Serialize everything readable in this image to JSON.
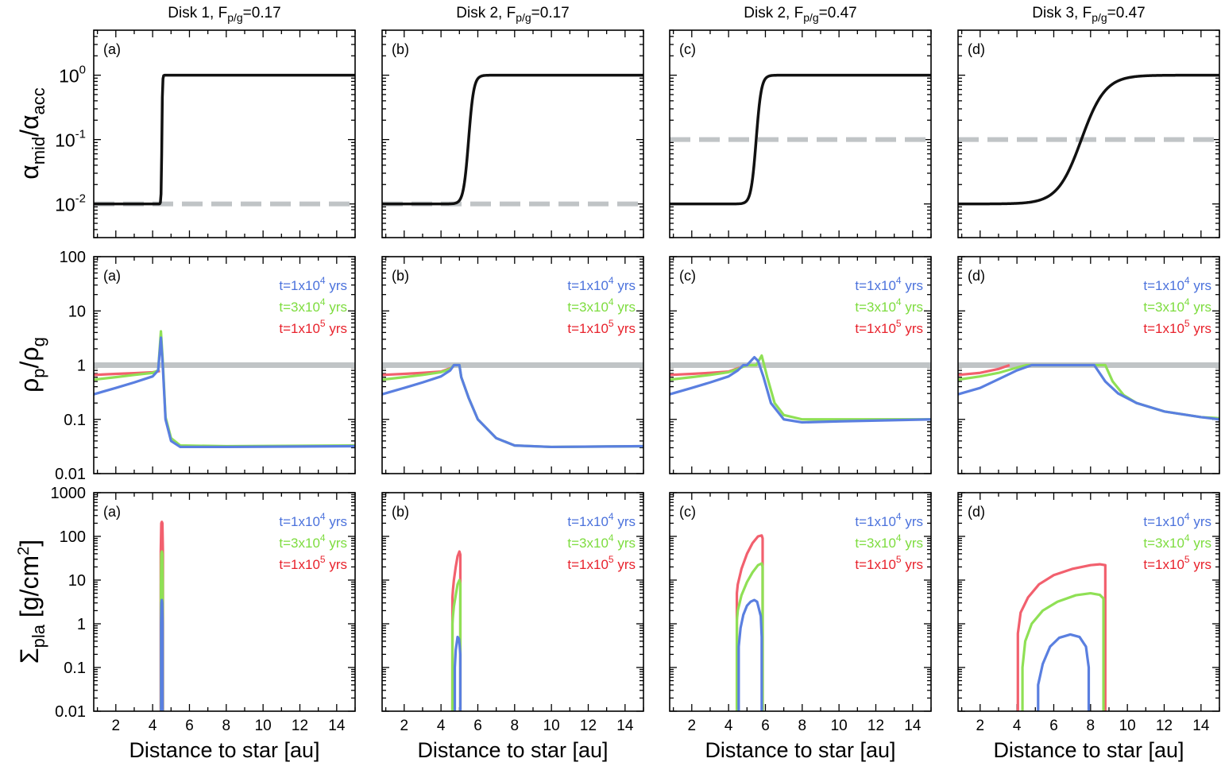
{
  "columns": [
    {
      "title": "Disk 1, F",
      "sub": "p/g",
      "val": "=0.17"
    },
    {
      "title": "Disk 2, F",
      "sub": "p/g",
      "val": "=0.17"
    },
    {
      "title": "Disk 2, F",
      "sub": "p/g",
      "val": "=0.47"
    },
    {
      "title": "Disk 3, F",
      "sub": "p/g",
      "val": "=0.47"
    }
  ],
  "panel_letters": [
    "(a)",
    "(b)",
    "(c)",
    "(d)"
  ],
  "xlabel": "Distance to star [au]",
  "xticks": [
    "2",
    "4",
    "6",
    "8",
    "10",
    "12",
    "14"
  ],
  "ylabels": {
    "row1": {
      "main": "α",
      "sub": "mid",
      "slash": "/α",
      "sub2": "acc"
    },
    "row2": {
      "main": "ρ",
      "sub": "p",
      "slash": "/ρ",
      "sub2": "g"
    },
    "row3": {
      "main": "Σ",
      "sub": "pla",
      "unit": " [g/cm",
      "sup": "2",
      "close": "]"
    }
  },
  "row1_ticks": [
    {
      "base": "10",
      "exp": "0"
    },
    {
      "base": "10",
      "exp": "-1"
    },
    {
      "base": "10",
      "exp": "-2"
    }
  ],
  "row2_ticks": [
    "100",
    "10",
    "1",
    "0.1",
    "0.01"
  ],
  "row3_ticks": [
    "1000",
    "100",
    "10",
    "1",
    "0.1",
    "0.01"
  ],
  "legend": [
    {
      "pre": "t=1x10",
      "sup": "4",
      "post": " yrs",
      "color": "#4b72dc"
    },
    {
      "pre": "t=3x10",
      "sup": "4",
      "post": " yrs",
      "color": "#7ddc3e"
    },
    {
      "pre": "t=1x10",
      "sup": "5",
      "post": " yrs",
      "color": "#e8222c"
    }
  ],
  "colors": {
    "t1e4": "#5a7fe0",
    "t3e4": "#8fe055",
    "t1e5": "#f2606e",
    "reference": "#c0c4c6",
    "alpha": "#111111"
  },
  "chart_data": [
    {
      "type": "line",
      "row": 1,
      "ylabel": "α_mid/α_acc",
      "yscale": "log",
      "ylim": [
        0.003,
        5
      ],
      "xlim": [
        0.8,
        15
      ],
      "series": [
        {
          "panel": "(a)",
          "name": "α_mid/α_acc",
          "transition_au": 4.5,
          "low": 0.01,
          "high": 1,
          "reference_dashed": 0.01
        },
        {
          "panel": "(b)",
          "name": "α_mid/α_acc",
          "transition_au": 5.5,
          "low": 0.01,
          "high": 1,
          "reference_dashed": 0.01
        },
        {
          "panel": "(c)",
          "name": "α_mid/α_acc",
          "transition_au": 5.5,
          "low": 0.01,
          "high": 1,
          "reference_dashed": 0.1
        },
        {
          "panel": "(d)",
          "name": "α_mid/α_acc",
          "transition_au": 7.5,
          "low": 0.01,
          "high": 1,
          "reference_dashed": 0.1
        }
      ]
    },
    {
      "type": "line",
      "row": 2,
      "ylabel": "ρ_p/ρ_g",
      "yscale": "log",
      "ylim": [
        0.01,
        100
      ],
      "xlim": [
        0.8,
        15
      ],
      "reference_line": 1,
      "series": [
        {
          "panel": "(a)",
          "name": "t=1x10^4 yrs",
          "x": [
            0.8,
            2,
            3,
            4,
            4.3,
            4.45,
            4.55,
            4.7,
            5,
            5.5,
            8,
            15
          ],
          "y": [
            0.29,
            0.38,
            0.48,
            0.62,
            0.8,
            3.2,
            1.0,
            0.1,
            0.04,
            0.031,
            0.031,
            0.032
          ]
        },
        {
          "panel": "(a)",
          "name": "t=3x10^4 yrs",
          "x": [
            0.8,
            2,
            3,
            4,
            4.3,
            4.45,
            4.55,
            4.7,
            5,
            5.5,
            8,
            15
          ],
          "y": [
            0.54,
            0.6,
            0.66,
            0.72,
            0.8,
            4.2,
            1.2,
            0.11,
            0.045,
            0.033,
            0.032,
            0.033
          ]
        },
        {
          "panel": "(a)",
          "name": "t=1x10^5 yrs",
          "x": [
            0.8,
            2,
            3,
            4,
            4.4
          ],
          "y": [
            0.66,
            0.69,
            0.71,
            0.74,
            0.78
          ]
        },
        {
          "panel": "(b)",
          "name": "t=1x10^4 yrs",
          "x": [
            0.8,
            2,
            3,
            4,
            4.5,
            4.7,
            5.0,
            5.1,
            5.5,
            6,
            7,
            8,
            10,
            15
          ],
          "y": [
            0.29,
            0.38,
            0.48,
            0.62,
            0.8,
            1.0,
            1.0,
            0.6,
            0.25,
            0.1,
            0.045,
            0.033,
            0.031,
            0.032
          ]
        },
        {
          "panel": "(b)",
          "name": "t=3x10^4 yrs",
          "x": [
            0.8,
            2,
            3,
            4,
            4.5,
            4.7,
            5.0,
            5.1,
            5.5,
            6,
            7,
            8,
            10,
            15
          ],
          "y": [
            0.54,
            0.6,
            0.66,
            0.74,
            0.85,
            1.0,
            1.0,
            0.6,
            0.25,
            0.1,
            0.045,
            0.033,
            0.031,
            0.032
          ]
        },
        {
          "panel": "(b)",
          "name": "t=1x10^5 yrs",
          "x": [
            0.8,
            2,
            3,
            4,
            4.6
          ],
          "y": [
            0.66,
            0.69,
            0.72,
            0.76,
            0.9
          ]
        },
        {
          "panel": "(c)",
          "name": "t=1x10^4 yrs",
          "x": [
            0.8,
            2,
            3,
            4,
            4.5,
            4.8,
            5.0,
            5.4,
            5.6,
            5.9,
            6.3,
            7,
            8,
            10,
            15
          ],
          "y": [
            0.29,
            0.38,
            0.48,
            0.62,
            0.8,
            1.0,
            1.0,
            1.4,
            1.2,
            0.6,
            0.2,
            0.1,
            0.088,
            0.092,
            0.1
          ]
        },
        {
          "panel": "(c)",
          "name": "t=3x10^4 yrs",
          "x": [
            0.8,
            2,
            3,
            4,
            4.5,
            5.0,
            5.5,
            5.8,
            6.1,
            6.5,
            7,
            8,
            10,
            15
          ],
          "y": [
            0.54,
            0.6,
            0.66,
            0.74,
            0.85,
            1.0,
            1.0,
            1.5,
            0.6,
            0.2,
            0.12,
            0.1,
            0.1,
            0.1
          ]
        },
        {
          "panel": "(c)",
          "name": "t=1x10^5 yrs",
          "x": [
            0.8,
            2,
            3,
            4,
            4.6
          ],
          "y": [
            0.66,
            0.69,
            0.72,
            0.76,
            0.9
          ]
        },
        {
          "panel": "(d)",
          "name": "t=1x10^4 yrs",
          "x": [
            0.8,
            2,
            3,
            4,
            4.8,
            5,
            7.5,
            8.2,
            8.8,
            9.5,
            10.5,
            12,
            14,
            15
          ],
          "y": [
            0.29,
            0.38,
            0.55,
            0.8,
            1.0,
            1.0,
            1.0,
            1.0,
            0.5,
            0.3,
            0.2,
            0.14,
            0.11,
            0.1
          ]
        },
        {
          "panel": "(d)",
          "name": "t=3x10^4 yrs",
          "x": [
            0.8,
            2,
            3,
            4,
            4.5,
            5,
            8.2,
            8.8,
            9.2,
            9.8,
            10.5,
            12,
            14,
            15
          ],
          "y": [
            0.54,
            0.62,
            0.72,
            0.9,
            1.0,
            1.0,
            1.0,
            1.0,
            0.5,
            0.28,
            0.2,
            0.14,
            0.11,
            0.105
          ]
        },
        {
          "panel": "(d)",
          "name": "t=1x10^5 yrs",
          "x": [
            0.8,
            2,
            3,
            3.6
          ],
          "y": [
            0.66,
            0.72,
            0.85,
            1.0
          ]
        }
      ]
    },
    {
      "type": "line",
      "row": 3,
      "ylabel": "Σ_pla [g/cm^2]",
      "yscale": "log",
      "ylim": [
        0.01,
        1000
      ],
      "xlim": [
        0.8,
        15
      ],
      "series": [
        {
          "panel": "(a)",
          "name": "t=1x10^5 yrs",
          "x": [
            4.44,
            4.44,
            4.47,
            4.5,
            4.53,
            4.56,
            4.56
          ],
          "y": [
            0.01,
            40,
            200,
            215,
            200,
            40,
            0.01
          ]
        },
        {
          "panel": "(a)",
          "name": "t=3x10^4 yrs",
          "x": [
            4.45,
            4.45,
            4.47,
            4.5,
            4.53,
            4.55,
            4.55
          ],
          "y": [
            0.01,
            8,
            40,
            45,
            40,
            8,
            0.01
          ]
        },
        {
          "panel": "(a)",
          "name": "t=1x10^4 yrs",
          "x": [
            4.46,
            4.46,
            4.48,
            4.5,
            4.52,
            4.54,
            4.54
          ],
          "y": [
            0.01,
            1,
            3,
            3.5,
            3,
            1,
            0.01
          ]
        },
        {
          "panel": "(b)",
          "name": "t=1x10^5 yrs",
          "x": [
            4.62,
            4.62,
            4.65,
            4.7,
            4.8,
            4.9,
            5.0,
            5.05,
            5.05
          ],
          "y": [
            0.01,
            4,
            6,
            10,
            20,
            35,
            45,
            38,
            0.01
          ]
        },
        {
          "panel": "(b)",
          "name": "t=3x10^4 yrs",
          "x": [
            4.62,
            4.62,
            4.65,
            4.7,
            4.8,
            4.9,
            5.0,
            5.05,
            5.05
          ],
          "y": [
            0.01,
            1,
            1.5,
            2.5,
            4.5,
            8,
            10,
            8,
            0.01
          ]
        },
        {
          "panel": "(b)",
          "name": "t=1x10^4 yrs",
          "x": [
            4.75,
            4.75,
            4.8,
            4.9,
            4.98,
            5.05,
            5.05
          ],
          "y": [
            0.01,
            0.1,
            0.25,
            0.5,
            0.45,
            0.2,
            0.01
          ]
        },
        {
          "panel": "(c)",
          "name": "t=1x10^5 yrs",
          "x": [
            4.45,
            4.45,
            4.5,
            4.7,
            5.0,
            5.3,
            5.6,
            5.8,
            5.85,
            5.85
          ],
          "y": [
            0.01,
            5,
            8,
            18,
            40,
            70,
            100,
            105,
            90,
            0.01
          ]
        },
        {
          "panel": "(c)",
          "name": "t=3x10^4 yrs",
          "x": [
            4.45,
            4.45,
            4.5,
            4.7,
            5.0,
            5.3,
            5.6,
            5.8,
            5.85,
            5.85
          ],
          "y": [
            0.01,
            1.2,
            2,
            4.5,
            9,
            15,
            22,
            24,
            20,
            0.01
          ]
        },
        {
          "panel": "(c)",
          "name": "t=1x10^4 yrs",
          "x": [
            4.55,
            4.55,
            4.65,
            4.8,
            5.0,
            5.2,
            5.4,
            5.55,
            5.75,
            5.8,
            5.8
          ],
          "y": [
            0.01,
            0.3,
            0.8,
            1.6,
            2.6,
            3.2,
            3.5,
            3.2,
            1.5,
            0.5,
            0.01
          ]
        },
        {
          "panel": "(d)",
          "name": "t=1x10^5 yrs",
          "x": [
            4.05,
            4.05,
            4.2,
            4.6,
            5.2,
            6,
            7,
            8,
            8.5,
            8.8,
            8.8
          ],
          "y": [
            0.01,
            0.6,
            1.8,
            4,
            8,
            13,
            18,
            22,
            23,
            22,
            0.01
          ]
        },
        {
          "panel": "(d)",
          "name": "t=3x10^4 yrs",
          "x": [
            4.3,
            4.3,
            4.45,
            4.8,
            5.4,
            6.2,
            7.2,
            8,
            8.5,
            8.7,
            8.7
          ],
          "y": [
            0.01,
            0.1,
            0.4,
            1.0,
            2.0,
            3.2,
            4.5,
            5.0,
            4.6,
            3.8,
            0.01
          ]
        },
        {
          "panel": "(d)",
          "name": "t=1x10^4 yrs",
          "x": [
            5.15,
            5.15,
            5.4,
            5.8,
            6.3,
            6.9,
            7.4,
            7.75,
            7.9,
            7.9
          ],
          "y": [
            0.01,
            0.04,
            0.12,
            0.3,
            0.48,
            0.57,
            0.5,
            0.3,
            0.1,
            0.01
          ]
        }
      ]
    }
  ]
}
